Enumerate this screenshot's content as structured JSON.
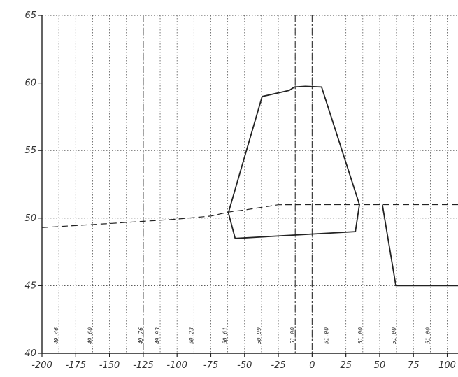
{
  "chart_data": {
    "type": "line",
    "title": "",
    "xlabel": "",
    "ylabel": "",
    "xlim": [
      -200,
      108
    ],
    "ylim": [
      40,
      65
    ],
    "grid": true,
    "x_ticks": [
      -200,
      -175,
      -150,
      -125,
      -100,
      -75,
      -50,
      -25,
      0,
      25,
      50,
      75,
      100
    ],
    "x_tick_labels": [
      "-200",
      "-175",
      "-150",
      "-125",
      "-100",
      "-75",
      "-50",
      "-25",
      "0",
      "25",
      "50",
      "75",
      "100"
    ],
    "y_ticks": [
      40,
      45,
      50,
      55,
      60,
      65
    ],
    "y_tick_labels": [
      "40",
      "45",
      "50",
      "55",
      "60",
      "65"
    ],
    "reference_lines_x": [
      -125,
      -12.5,
      0
    ],
    "elevation_labels": [
      {
        "x": -187.5,
        "text": "49.46"
      },
      {
        "x": -162.5,
        "text": "49.60"
      },
      {
        "x": -125,
        "text": "49.76"
      },
      {
        "x": -112.5,
        "text": "49.93"
      },
      {
        "x": -87.5,
        "text": "50.23"
      },
      {
        "x": -62.5,
        "text": "50.61"
      },
      {
        "x": -37.5,
        "text": "50.99"
      },
      {
        "x": -12.5,
        "text": "51.00"
      },
      {
        "x": 12.5,
        "text": "51.00"
      },
      {
        "x": 37.5,
        "text": "51.00"
      },
      {
        "x": 62.5,
        "text": "51.00"
      },
      {
        "x": 87.5,
        "text": "51.00"
      }
    ],
    "series": [
      {
        "style": "dashed",
        "points": [
          [
            -200,
            49.3
          ],
          [
            -175,
            49.45
          ],
          [
            -150,
            49.6
          ],
          [
            -125,
            49.76
          ],
          [
            -100,
            49.93
          ],
          [
            -75,
            50.15
          ],
          [
            -62,
            50.45
          ],
          [
            -50,
            50.6
          ],
          [
            -25,
            50.99
          ],
          [
            0,
            51.0
          ],
          [
            25,
            51.0
          ],
          [
            50,
            51.0
          ],
          [
            75,
            51.0
          ],
          [
            108,
            51.0
          ]
        ]
      },
      {
        "style": "solid",
        "points": [
          [
            -62,
            50.4
          ],
          [
            -37,
            59.0
          ],
          [
            -17,
            59.45
          ],
          [
            -13,
            59.7
          ],
          [
            -5,
            59.75
          ],
          [
            7,
            59.7
          ],
          [
            35,
            51.0
          ],
          [
            32,
            49.0
          ],
          [
            -57,
            48.5
          ],
          [
            -62,
            50.4
          ]
        ]
      },
      {
        "style": "solid",
        "points": [
          [
            52,
            51.0
          ],
          [
            62,
            45.0
          ],
          [
            108,
            45.0
          ]
        ]
      }
    ]
  }
}
